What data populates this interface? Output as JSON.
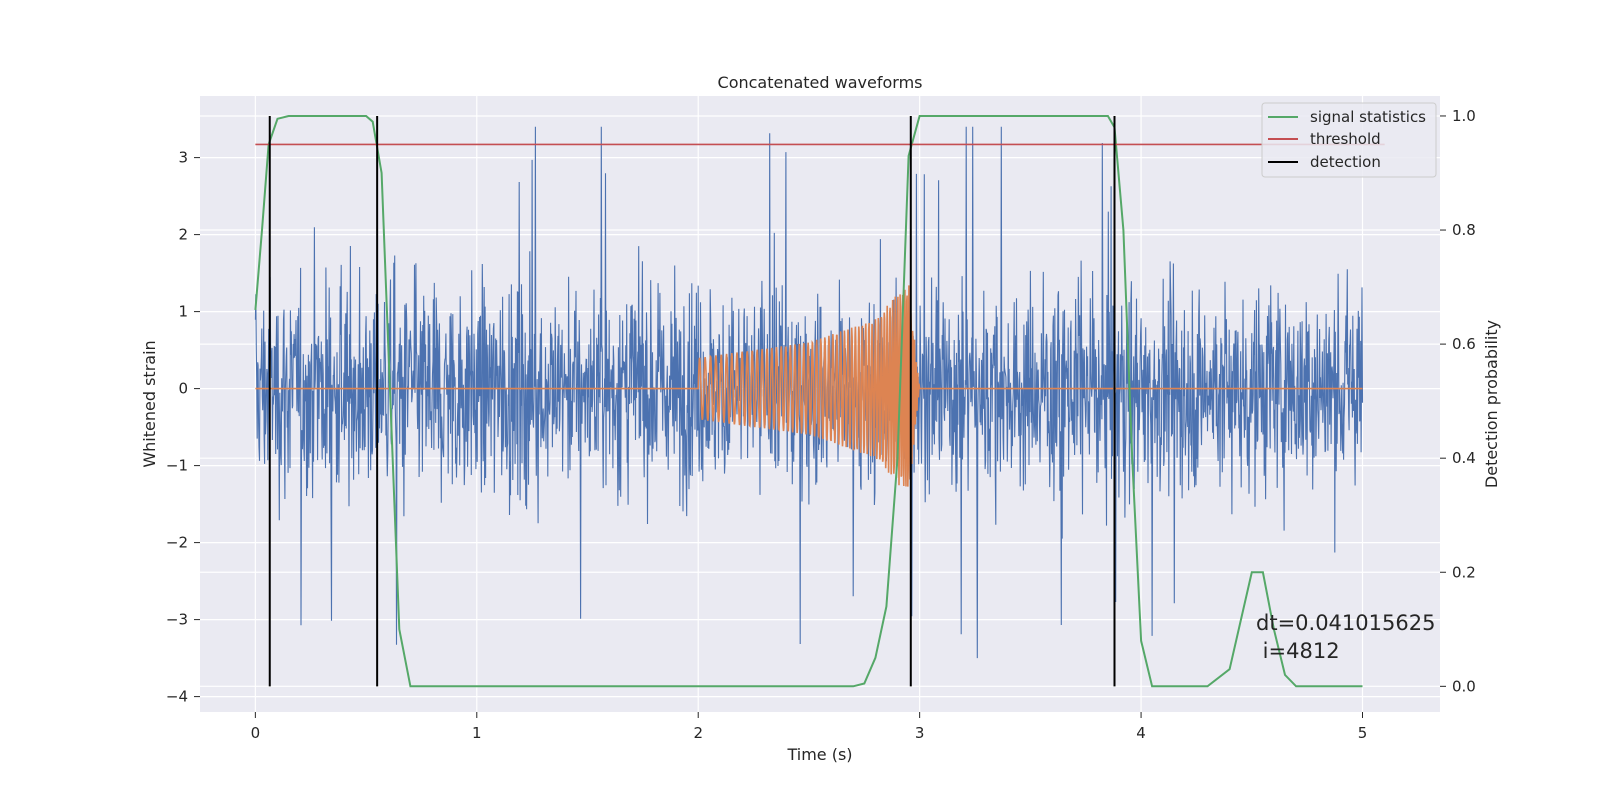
{
  "chart_data": {
    "type": "line",
    "title": "Concatenated waveforms",
    "xlabel": "Time (s)",
    "ylabel": "Whitened strain",
    "y2label": "Detection probability",
    "xlim": [
      -0.25,
      5.35
    ],
    "ylim": [
      -4.2,
      3.8
    ],
    "y2lim": [
      -0.045,
      1.035
    ],
    "xticks": [
      0,
      1,
      2,
      3,
      4,
      5
    ],
    "xtick_labels": [
      "0",
      "1",
      "2",
      "3",
      "4",
      "5"
    ],
    "yticks": [
      -4,
      -3,
      -2,
      -1,
      0,
      1,
      2,
      3
    ],
    "ytick_labels": [
      "−4",
      "−3",
      "−2",
      "−1",
      "0",
      "1",
      "2",
      "3"
    ],
    "y2ticks": [
      0.0,
      0.2,
      0.4,
      0.6,
      0.8,
      1.0
    ],
    "y2tick_labels": [
      "0.0",
      "0.2",
      "0.4",
      "0.6",
      "0.8",
      "1.0"
    ],
    "grid": true,
    "legend_position": "top-right",
    "colors": {
      "background": "#eaeaf2",
      "noise": "#4c72b0",
      "waveform": "#dd8452",
      "signal_statistics": "#55a868",
      "threshold": "#c44e52",
      "detection": "#000000"
    },
    "series": [
      {
        "name": "",
        "kind": "whitened-noise",
        "axis": "left",
        "x_range": [
          0,
          5
        ],
        "envelope_typical": [
          -1.6,
          1.9
        ],
        "envelope_extreme": [
          -3.85,
          3.4
        ]
      },
      {
        "name": "",
        "kind": "chirp-waveform",
        "axis": "left",
        "x": [
          0,
          2.0,
          2.5,
          2.8,
          2.95,
          3.0,
          5.0
        ],
        "amplitude": [
          0,
          0.4,
          0.6,
          0.9,
          1.4,
          0,
          0
        ]
      },
      {
        "name": "signal statistics",
        "axis": "right",
        "x": [
          0.0,
          0.03,
          0.06,
          0.1,
          0.15,
          0.5,
          0.53,
          0.57,
          0.6,
          0.65,
          0.7,
          2.7,
          2.75,
          2.8,
          2.85,
          2.9,
          2.95,
          3.0,
          3.85,
          3.88,
          3.92,
          3.96,
          4.0,
          4.05,
          4.3,
          4.4,
          4.5,
          4.55,
          4.6,
          4.65,
          4.7,
          5.0
        ],
        "values": [
          0.66,
          0.8,
          0.95,
          0.995,
          1.0,
          1.0,
          0.99,
          0.9,
          0.6,
          0.1,
          0.0,
          0.0,
          0.005,
          0.05,
          0.14,
          0.4,
          0.93,
          1.0,
          1.0,
          0.98,
          0.8,
          0.4,
          0.08,
          0.0,
          0.0,
          0.03,
          0.2,
          0.2,
          0.1,
          0.02,
          0.0,
          0.0
        ]
      },
      {
        "name": "threshold",
        "axis": "right",
        "x": [
          0,
          5.1
        ],
        "values": [
          0.95,
          0.95
        ]
      },
      {
        "name": "detection",
        "axis": "right",
        "vlines": [
          0.065,
          0.55,
          2.96,
          3.88
        ],
        "ymin": 0.0,
        "ymax": 1.0
      }
    ],
    "legend": [
      "signal statistics",
      "threshold",
      "detection"
    ],
    "annotations": [
      "dt=0.041015625",
      " i=4812"
    ]
  }
}
